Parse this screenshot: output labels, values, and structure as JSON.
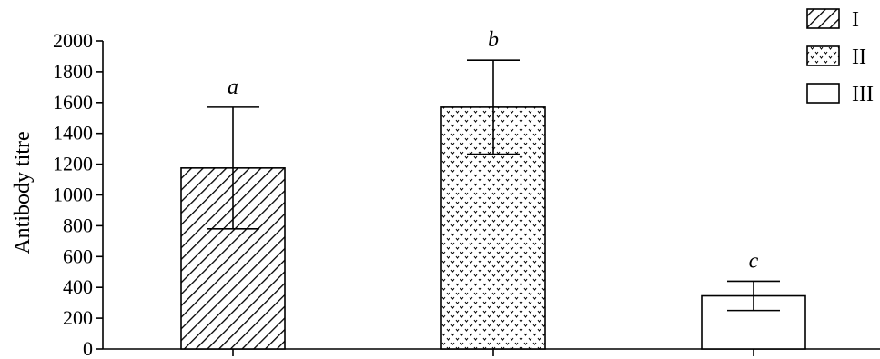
{
  "chart_data": {
    "type": "bar",
    "title": "",
    "xlabel": "",
    "ylabel": "Antibody titre",
    "ylim": [
      0,
      2000
    ],
    "yticks": [
      0,
      200,
      400,
      600,
      800,
      1000,
      1200,
      1400,
      1600,
      1800,
      2000
    ],
    "grid": false,
    "legend_position": "top-right",
    "series": [
      {
        "name": "I",
        "pattern": "diagonal-hatch",
        "value": 1175,
        "error": 395,
        "significance": "a"
      },
      {
        "name": "II",
        "pattern": "dotted",
        "value": 1570,
        "error": 305,
        "significance": "b"
      },
      {
        "name": "III",
        "pattern": "blank",
        "value": 345,
        "error": 95,
        "significance": "c"
      }
    ]
  },
  "colors": {
    "stroke": "#000000",
    "fill": "#ffffff"
  }
}
